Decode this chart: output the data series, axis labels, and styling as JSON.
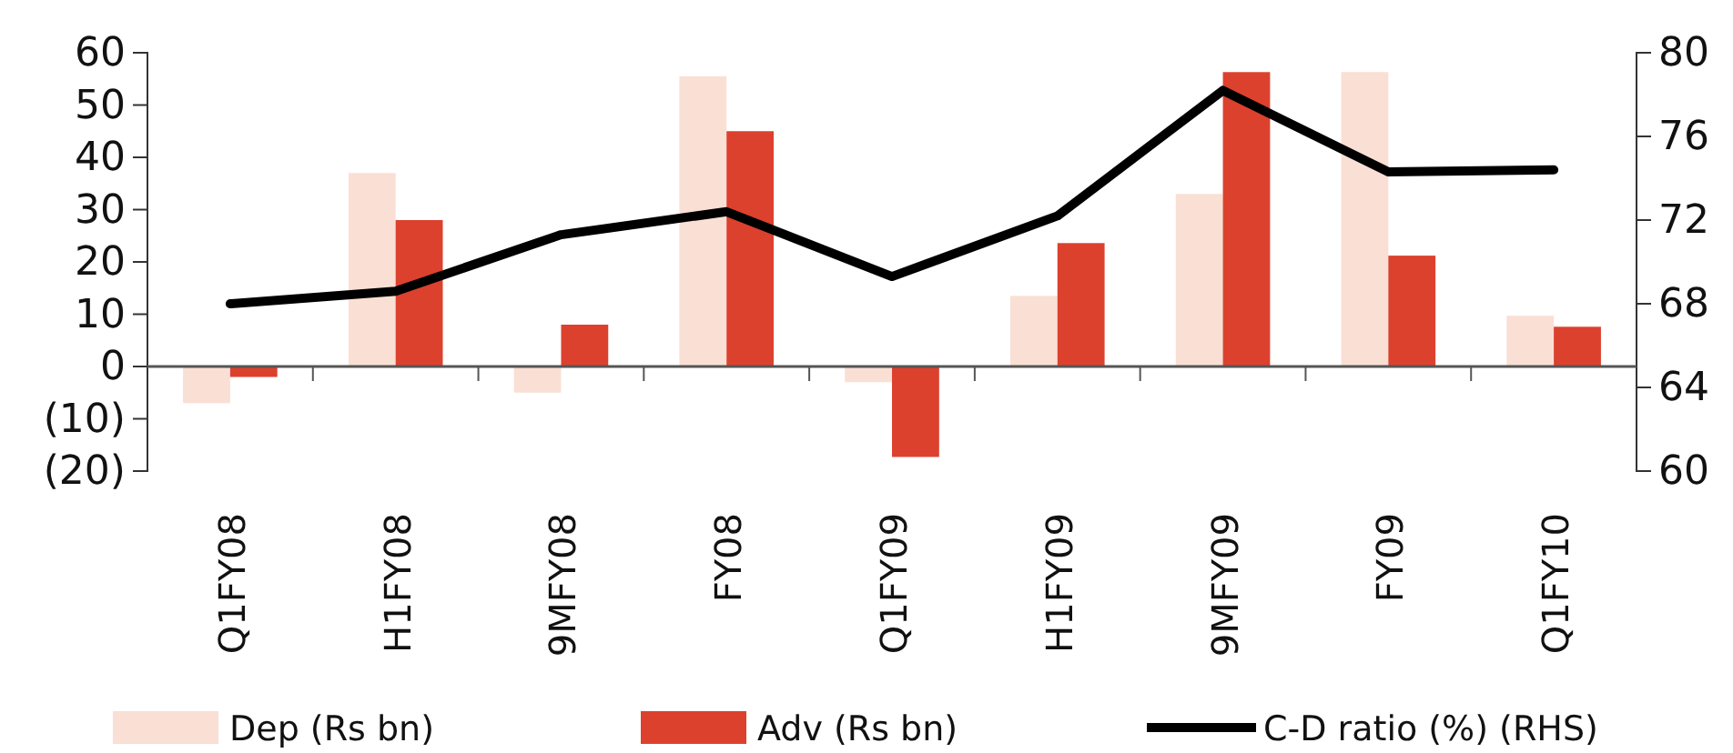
{
  "chart_data": {
    "type": "bar",
    "categories": [
      "Q1FY08",
      "H1FY08",
      "9MFY08",
      "FY08",
      "Q1FY09",
      "H1FY09",
      "9MFY09",
      "FY09",
      "Q1FY10"
    ],
    "series": [
      {
        "name": "Dep (Rs bn)",
        "color": "#fadfd5",
        "values": [
          -7,
          37,
          -5,
          55.5,
          -3,
          13.5,
          33,
          56.3,
          9.7
        ]
      },
      {
        "name": "Adv (Rs bn)",
        "color": "#dc412e",
        "values": [
          -2,
          28,
          8,
          45,
          -17.3,
          23.6,
          56.3,
          21.2,
          7.6
        ]
      },
      {
        "name": "C-D ratio (%) (RHS)",
        "color": "#000000",
        "type": "line",
        "axis": "y2",
        "values": [
          68.0,
          68.6,
          71.3,
          72.4,
          69.3,
          72.2,
          78.2,
          74.3,
          74.4
        ]
      }
    ],
    "ylim": [
      -20,
      60
    ],
    "yticks": [
      {
        "value": -20,
        "label": "(20)"
      },
      {
        "value": -10,
        "label": "(10)"
      },
      0,
      10,
      20,
      30,
      40,
      50,
      60
    ],
    "y2lim": [
      60,
      80
    ],
    "y2ticks": [
      60,
      64,
      68,
      72,
      76,
      80
    ],
    "legend": "bottom",
    "marker": "none"
  }
}
